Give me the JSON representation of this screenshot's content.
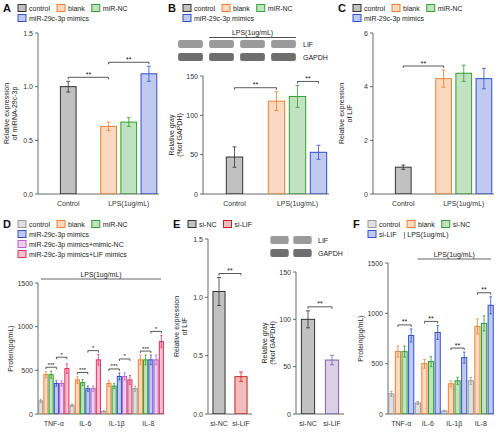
{
  "chart_data": [
    {
      "type": "bar",
      "title": "A",
      "ylabel": "Relative expression\nof miRNA-29c-3p",
      "categories": [
        "Control",
        "LPS(1ug/mL)"
      ],
      "series": [
        {
          "name": "control",
          "color": "#333333",
          "values": [
            1.0,
            null
          ],
          "errors": [
            0.05,
            null
          ]
        },
        {
          "name": "blank",
          "color": "#f08030",
          "values": [
            null,
            0.63
          ],
          "errors": [
            null,
            0.04
          ]
        },
        {
          "name": "miR-NC",
          "color": "#30a030",
          "values": [
            null,
            0.67
          ],
          "errors": [
            null,
            0.04
          ]
        },
        {
          "name": "miR-29c-3p mimics",
          "color": "#3050d0",
          "values": [
            null,
            1.12
          ],
          "errors": [
            null,
            0.07
          ]
        }
      ],
      "ylim": [
        0,
        1.5
      ],
      "yticks": [
        {
          "value": 0,
          "label": "0.0"
        },
        0.5,
        {
          "value": 1.0,
          "label": "1.0"
        },
        1.5
      ],
      "grid": false,
      "legend": "top",
      "significance": [
        {
          "text": "**",
          "between": [
            "control",
            "blank"
          ]
        },
        {
          "text": "**",
          "between": [
            "blank",
            "miR-29c-3p mimics"
          ]
        }
      ]
    },
    {
      "type": "bar",
      "title": "B",
      "ylabel": "Relative gray\n(%of GAPDH)",
      "categories": [
        "Control",
        "LPS(1ug/mL)"
      ],
      "series": [
        {
          "name": "control",
          "color": "#333333",
          "values": [
            47,
            null
          ],
          "errors": [
            13,
            null
          ]
        },
        {
          "name": "blank",
          "color": "#f08030",
          "values": [
            null,
            118
          ],
          "errors": [
            null,
            12
          ]
        },
        {
          "name": "miR-NC",
          "color": "#30a030",
          "values": [
            null,
            124
          ],
          "errors": [
            null,
            14
          ]
        },
        {
          "name": "miR-29c-3p mimics",
          "color": "#3050d0",
          "values": [
            null,
            53
          ],
          "errors": [
            null,
            9
          ]
        }
      ],
      "ylim": [
        0,
        150
      ],
      "yticks": [
        0,
        50,
        100,
        150
      ],
      "grid": false,
      "legend": "top",
      "blot": {
        "label": "LPS(1ug/mL)",
        "bands": [
          "LIF",
          "GAPDH"
        ]
      },
      "significance": [
        {
          "text": "**",
          "between": [
            "control",
            "blank"
          ]
        },
        {
          "text": "**",
          "between": [
            "miR-NC",
            "miR-29c-3p mimics"
          ]
        }
      ]
    },
    {
      "type": "bar",
      "title": "C",
      "ylabel": "Relative expression\nof LIF",
      "categories": [
        "Control",
        "LPS(1ug/mL)"
      ],
      "series": [
        {
          "name": "control",
          "color": "#333333",
          "values": [
            1.0,
            null
          ],
          "errors": [
            0.08,
            null
          ]
        },
        {
          "name": "blank",
          "color": "#f08030",
          "values": [
            null,
            4.3
          ],
          "errors": [
            null,
            0.32
          ]
        },
        {
          "name": "miR-NC",
          "color": "#30a030",
          "values": [
            null,
            4.5
          ],
          "errors": [
            null,
            0.3
          ]
        },
        {
          "name": "miR-29c-3p mimics",
          "color": "#3050d0",
          "values": [
            null,
            4.3
          ],
          "errors": [
            null,
            0.38
          ]
        }
      ],
      "ylim": [
        0,
        6
      ],
      "yticks": [
        0,
        2,
        4,
        6
      ],
      "grid": false,
      "legend": "top",
      "significance": [
        {
          "text": "**",
          "between": [
            "control",
            "blank"
          ]
        }
      ]
    },
    {
      "type": "bar",
      "title": "D",
      "ylabel": "Protein(pg/mL)",
      "categories": [
        "TNF-α",
        "IL-6",
        "IL-1β",
        "IL-8"
      ],
      "series": [
        {
          "name": "control",
          "color": "#999999",
          "values": [
            150,
            100,
            30,
            290
          ],
          "errors": [
            20,
            15,
            8,
            30
          ]
        },
        {
          "name": "blank",
          "color": "#f08030",
          "values": [
            450,
            390,
            350,
            620
          ],
          "errors": [
            35,
            40,
            35,
            55
          ]
        },
        {
          "name": "miR-NC",
          "color": "#30a030",
          "values": [
            450,
            360,
            320,
            620
          ],
          "errors": [
            40,
            35,
            30,
            55
          ]
        },
        {
          "name": "miR-29c-3p mimics",
          "color": "#3050d0",
          "values": [
            350,
            290,
            430,
            620
          ],
          "errors": [
            30,
            30,
            40,
            55
          ]
        },
        {
          "name": "miR-29c-3p mimics+mimic-NC",
          "color": "#c060c0",
          "values": [
            350,
            290,
            430,
            620
          ],
          "errors": [
            30,
            30,
            40,
            55
          ]
        },
        {
          "name": "miR-29c-3p mimics+LIF mimics",
          "color": "#e03060",
          "values": [
            520,
            620,
            390,
            830
          ],
          "errors": [
            55,
            60,
            50,
            70
          ]
        }
      ],
      "ylim": [
        0,
        1500
      ],
      "yticks": [
        0,
        500,
        1000,
        1500
      ],
      "grid": false,
      "legend": "top",
      "group_label": "LPS(1ug/mL)",
      "significance": [
        {
          "text": "***",
          "category": "TNF-α",
          "between": [
            "blank",
            "miR-29c-3p mimics"
          ]
        },
        {
          "text": "*",
          "category": "TNF-α",
          "between": [
            "miR-29c-3p mimics",
            "miR-29c-3p mimics+LIF mimics"
          ]
        },
        {
          "text": "***",
          "category": "IL-6",
          "between": [
            "blank",
            "miR-29c-3p mimics"
          ]
        },
        {
          "text": "*",
          "category": "IL-6",
          "between": [
            "miR-29c-3p mimics",
            "miR-29c-3p mimics+LIF mimics"
          ]
        },
        {
          "text": "***",
          "category": "IL-1β",
          "between": [
            "blank",
            "miR-29c-3p mimics"
          ]
        },
        {
          "text": "*",
          "category": "IL-1β",
          "between": [
            "miR-29c-3p mimics",
            "miR-29c-3p mimics+LIF mimics"
          ]
        },
        {
          "text": "***",
          "category": "IL-8",
          "between": [
            "blank",
            "miR-29c-3p mimics"
          ]
        },
        {
          "text": "*",
          "category": "IL-8",
          "between": [
            "miR-29c-3p mimics",
            "miR-29c-3p mimics+LIF mimics"
          ]
        }
      ]
    },
    {
      "type": "bar",
      "title": "E",
      "ylabel": "Relative expression\nof LIF",
      "categories": [
        "si-NC",
        "si-LIF"
      ],
      "values": [
        1.05,
        0.32
      ],
      "errors": [
        0.12,
        0.04
      ],
      "colors": [
        "#333333",
        "#cc2020"
      ],
      "ylim": [
        0,
        1.5
      ],
      "yticks": [
        {
          "value": 0,
          "label": "0.0"
        },
        0.5,
        {
          "value": 1.0,
          "label": "1.0"
        },
        1.5
      ],
      "grid": false,
      "legend": "top",
      "significance": [
        {
          "text": "**",
          "between": [
            "si-NC",
            "si-LIF"
          ]
        }
      ]
    },
    {
      "type": "bar",
      "ylabel": "Relative gray\n(%of GAPDH)",
      "categories": [
        "si-NC",
        "si-LIF"
      ],
      "values": [
        100,
        57
      ],
      "errors": [
        9,
        5
      ],
      "colors": [
        "#333333",
        "#8060b0"
      ],
      "ylim": [
        0,
        150
      ],
      "yticks": [
        0,
        50,
        100,
        150
      ],
      "grid": false,
      "blot": {
        "bands": [
          "LIF",
          "GAPDH"
        ]
      },
      "significance": [
        {
          "text": "**",
          "between": [
            "si-NC",
            "si-LIF"
          ]
        }
      ]
    },
    {
      "type": "bar",
      "title": "F",
      "ylabel": "Protein(pg/mL)",
      "categories": [
        "TNF-α",
        "IL-6",
        "IL-1β",
        "IL-8"
      ],
      "series": [
        {
          "name": "control",
          "color": "#999999",
          "values": [
            200,
            110,
            30,
            330
          ],
          "errors": [
            25,
            15,
            8,
            35
          ]
        },
        {
          "name": "blank",
          "color": "#f08030",
          "values": [
            620,
            500,
            300,
            870
          ],
          "errors": [
            55,
            45,
            30,
            75
          ]
        },
        {
          "name": "si-NC",
          "color": "#30a030",
          "values": [
            620,
            520,
            330,
            900
          ],
          "errors": [
            55,
            50,
            35,
            75
          ]
        },
        {
          "name": "si-LIF",
          "color": "#3050d0",
          "values": [
            780,
            810,
            560,
            1080
          ],
          "errors": [
            65,
            70,
            55,
            85
          ]
        }
      ],
      "ylim": [
        0,
        1500
      ],
      "yticks": [
        0,
        500,
        1000,
        1500
      ],
      "grid": false,
      "legend": "top",
      "legend_note": "| LPS(1ug/mL)",
      "group_label": "LPS(1ug/mL)",
      "significance": [
        {
          "text": "**",
          "category": "TNF-α",
          "between": [
            "blank",
            "si-LIF"
          ]
        },
        {
          "text": "**",
          "category": "IL-6",
          "between": [
            "blank",
            "si-LIF"
          ]
        },
        {
          "text": "**",
          "category": "IL-1β",
          "between": [
            "blank",
            "si-LIF"
          ]
        },
        {
          "text": "**",
          "category": "IL-8",
          "between": [
            "blank",
            "si-LIF"
          ]
        }
      ]
    }
  ]
}
